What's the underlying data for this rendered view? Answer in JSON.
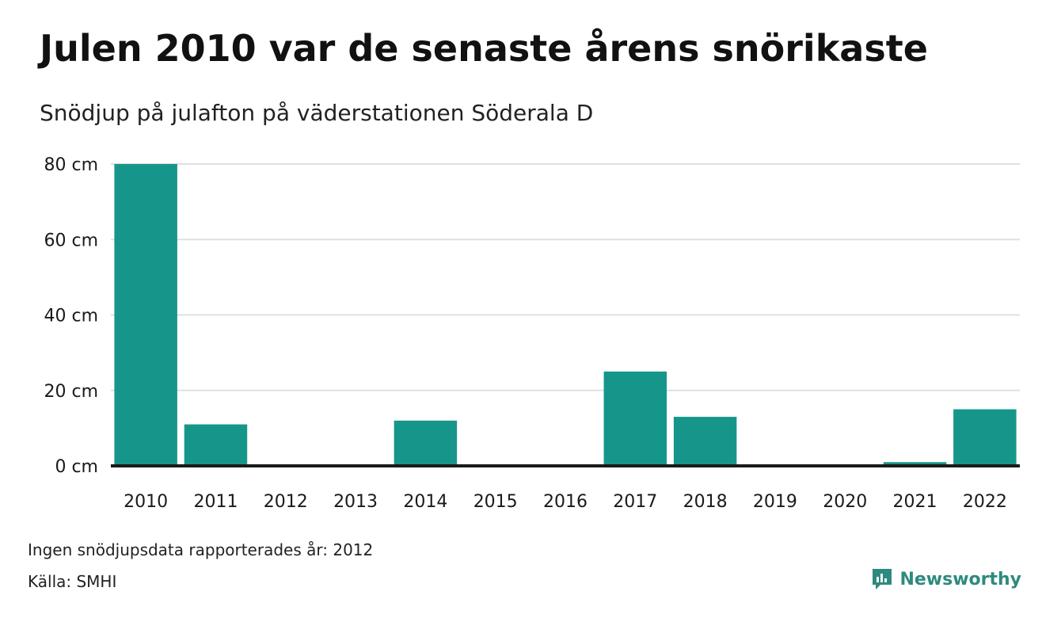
{
  "title": "Julen 2010 var de senaste årens snörikaste",
  "subtitle": "Snödjup på julafton på väderstationen Söderala D",
  "footer": {
    "note": "Ingen snödjupsdata rapporterades år: 2012",
    "source": "Källa: SMHI",
    "brand": "Newsworthy"
  },
  "colors": {
    "bar": "#16968a",
    "grid": "#e0e0e0",
    "baseline": "#1a1a1a",
    "brand": "#2e8a7f"
  },
  "chart_data": {
    "type": "bar",
    "categories": [
      "2010",
      "2011",
      "2012",
      "2013",
      "2014",
      "2015",
      "2016",
      "2017",
      "2018",
      "2019",
      "2020",
      "2021",
      "2022"
    ],
    "values": [
      80,
      11,
      0,
      0,
      12,
      0,
      0,
      25,
      13,
      0,
      0,
      1,
      15
    ],
    "ylim": [
      0,
      80
    ],
    "yticks": [
      0,
      20,
      40,
      60,
      80
    ],
    "ytick_labels": [
      "0 cm",
      "20 cm",
      "40 cm",
      "60 cm",
      "80 cm"
    ],
    "grid": true
  }
}
